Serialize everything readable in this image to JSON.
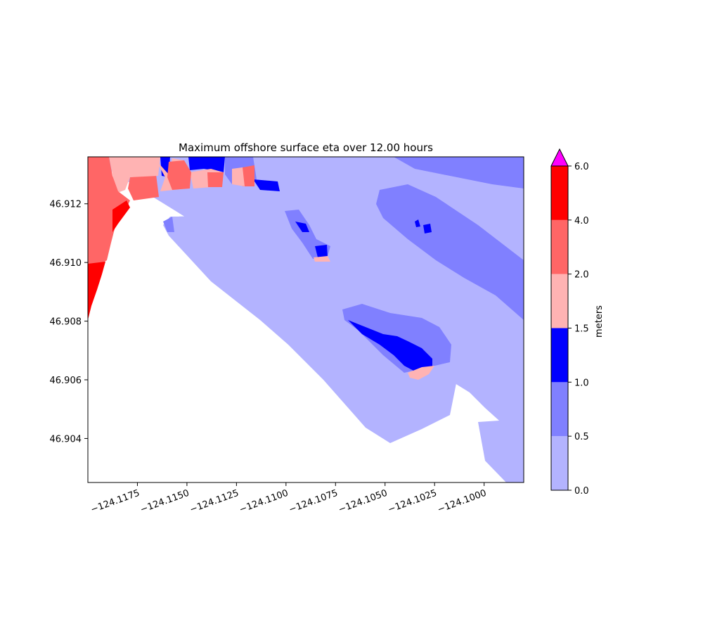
{
  "chart_data": {
    "type": "heatmap",
    "title": "Maximum offshore surface eta over 12.00 hours",
    "x_ticks": [
      "−124.1175",
      "−124.1150",
      "−124.1125",
      "−124.1100",
      "−124.1075",
      "−124.1050",
      "−124.1025",
      "−124.1000"
    ],
    "x_tick_values": [
      -124.1175,
      -124.115,
      -124.1125,
      -124.11,
      -124.1075,
      -124.105,
      -124.1025,
      -124.1
    ],
    "xlim": [
      -124.12,
      -124.098
    ],
    "y_ticks": [
      "46.904",
      "46.906",
      "46.908",
      "46.910",
      "46.912"
    ],
    "y_tick_values": [
      46.904,
      46.906,
      46.908,
      46.91,
      46.912
    ],
    "ylim": [
      46.9025,
      46.9136
    ],
    "colorbar": {
      "label": "meters",
      "levels": [
        0.0,
        0.5,
        1.0,
        1.5,
        2.0,
        4.0,
        6.0
      ],
      "level_labels": [
        "0.0",
        "0.5",
        "1.0",
        "1.5",
        "2.0",
        "4.0",
        "6.0"
      ],
      "colors": [
        "#b3b3ff",
        "#8080ff",
        "#0000ff",
        "#ffb3b3",
        "#ff6666",
        "#ff0000"
      ],
      "extend_max_color": "#ff00ff",
      "extend": "max"
    }
  }
}
